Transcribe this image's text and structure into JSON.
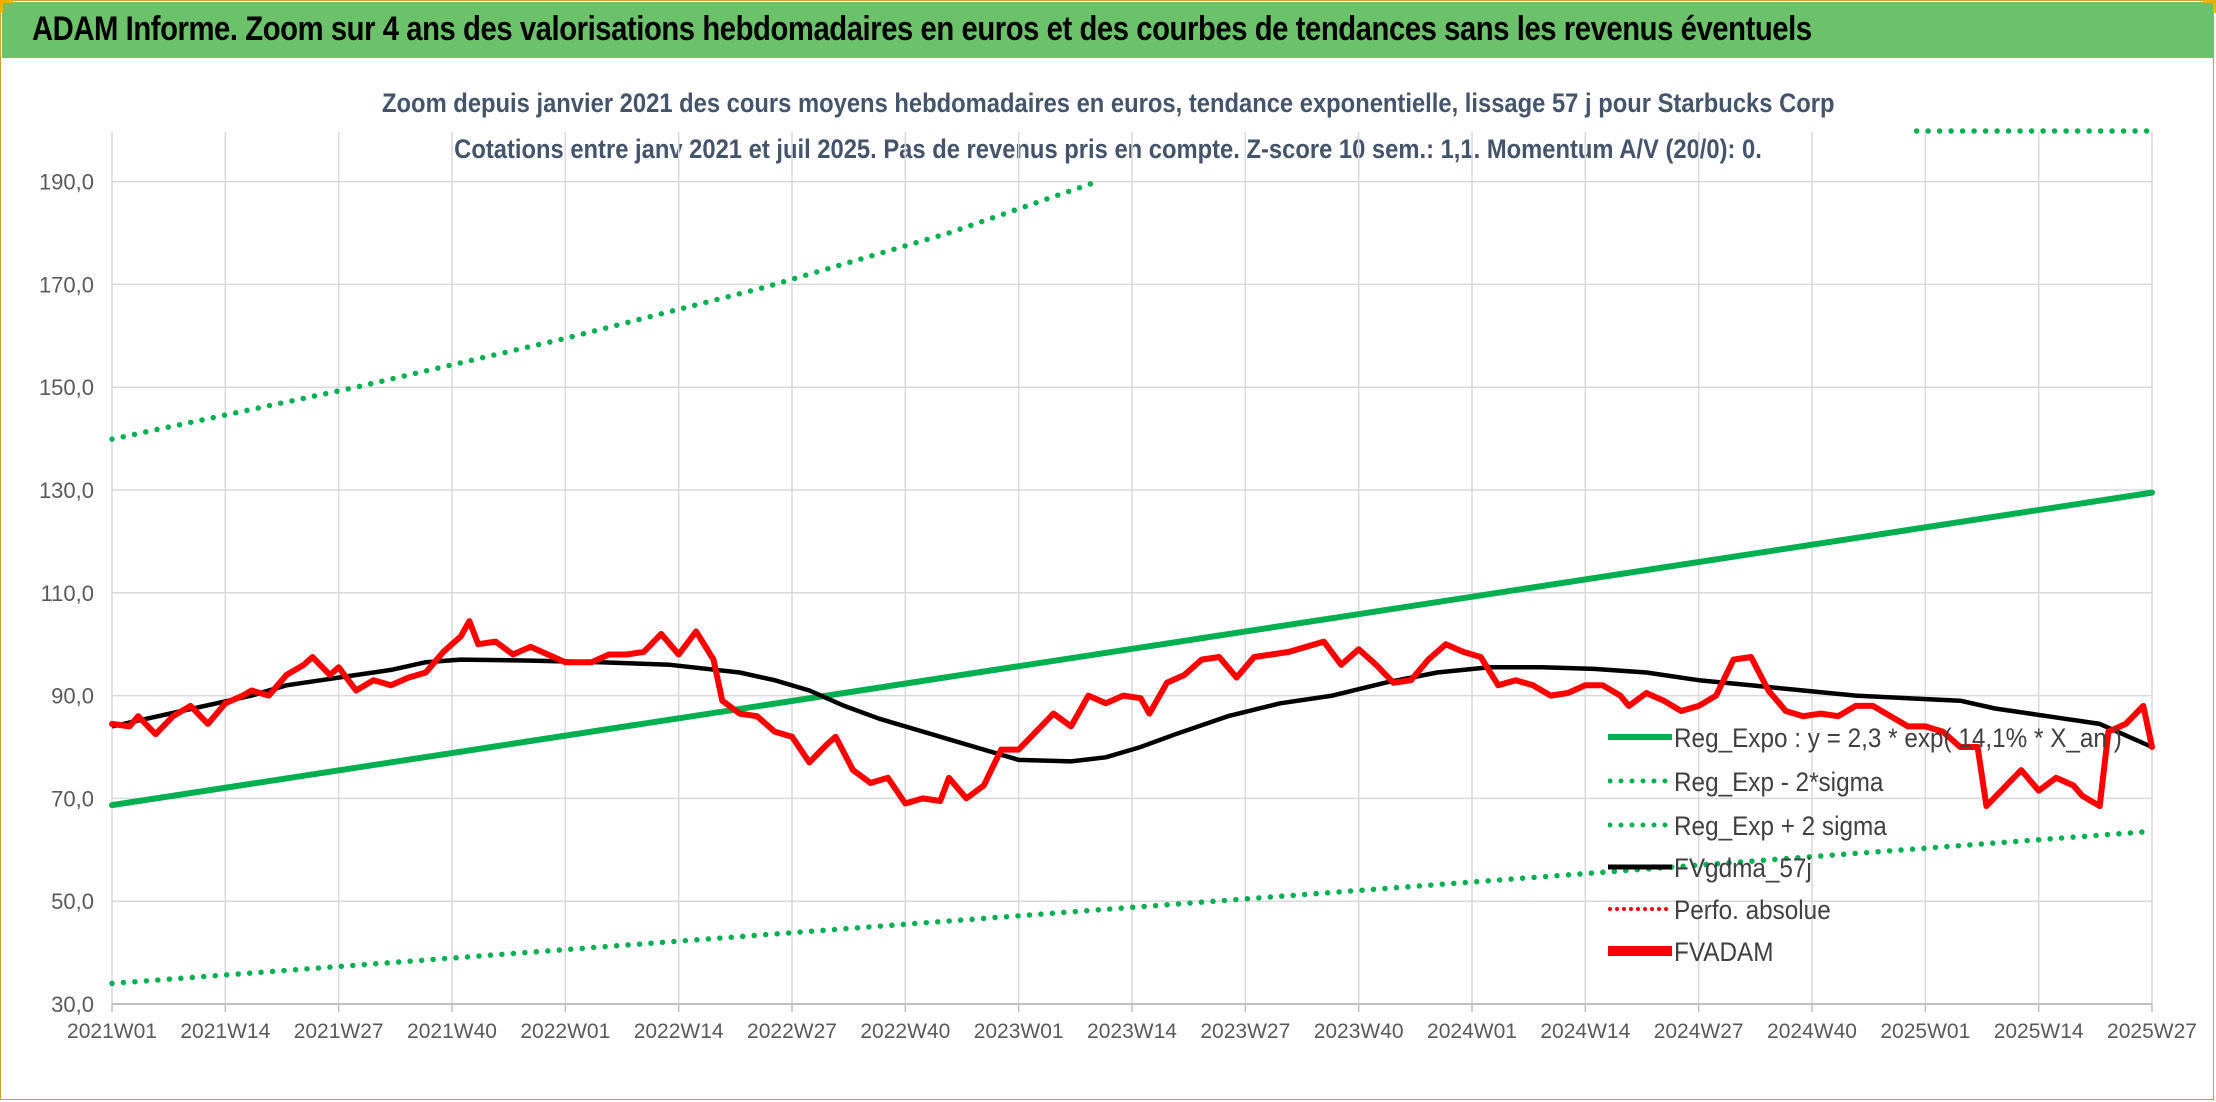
{
  "banner": {
    "title": "ADAM Informe. Zoom sur 4 ans des valorisations hebdomadaires en euros et des courbes de tendances sans les revenus éventuels"
  },
  "chart_data": {
    "type": "line",
    "title": "Zoom depuis janvier 2021 des cours moyens hebdomadaires en euros, tendance exponentielle, lissage 57 j pour Starbucks Corp",
    "subtitle": "Cotations entre janv 2021 et juil 2025. Pas de revenus pris en compte. Z-score 10 sem.: 1,1. Momentum A/V (20/0): 0.",
    "xlabel": "",
    "ylabel": "",
    "ylim": [
      30,
      200
    ],
    "yticks": [
      "30,0",
      "50,0",
      "70,0",
      "90,0",
      "110,0",
      "130,0",
      "150,0",
      "170,0",
      "190,0"
    ],
    "ytick_values": [
      30,
      50,
      70,
      90,
      110,
      130,
      150,
      170,
      190
    ],
    "xticks": [
      "2021W01",
      "2021W14",
      "2021W27",
      "2021W40",
      "2022W01",
      "2022W14",
      "2022W27",
      "2022W40",
      "2023W01",
      "2023W14",
      "2023W27",
      "2023W40",
      "2024W01",
      "2024W14",
      "2024W27",
      "2024W40",
      "2025W01",
      "2025W14",
      "2025W27"
    ],
    "x_start": "2021W01",
    "x_end": "2025W27",
    "grid": true,
    "legend_position": "bottom-right",
    "colors": {
      "trend": "#00b050",
      "smooth": "#000000",
      "price": "#ff0000",
      "grid": "#d9d9d9",
      "title": "#44546a",
      "banner": "#6cc26b"
    },
    "series": [
      {
        "name": "Reg_Expo : y = 2,3 * exp( 14,1% * X_an )",
        "style": "solid",
        "color": "#00b050",
        "points": [
          [
            0,
            68.7
          ],
          [
            234,
            129.5
          ]
        ]
      },
      {
        "name": "Reg_Exp - 2*sigma",
        "style": "dotted",
        "color": "#00b050",
        "points": [
          [
            0,
            34.0
          ],
          [
            234,
            63.6
          ]
        ]
      },
      {
        "name": "Reg_Exp + 2 sigma",
        "style": "dotted",
        "color": "#00b050",
        "points": [
          [
            0,
            139.9
          ],
          [
            28,
            150.0
          ],
          [
            52,
            159.5
          ],
          [
            75,
            169.5
          ],
          [
            96,
            180.0
          ],
          [
            113,
            190.0
          ]
        ],
        "extra_points": [
          [
            207,
            200.0
          ],
          [
            234,
            200.0
          ]
        ]
      },
      {
        "name": "FVgdma_57j",
        "style": "solid",
        "color": "#000000",
        "points": [
          [
            0,
            84.0
          ],
          [
            4,
            85.5
          ],
          [
            8,
            87.0
          ],
          [
            12,
            88.5
          ],
          [
            16,
            90.0
          ],
          [
            20,
            92.0
          ],
          [
            24,
            93.0
          ],
          [
            28,
            94.0
          ],
          [
            32,
            95.0
          ],
          [
            36,
            96.5
          ],
          [
            40,
            97.0
          ],
          [
            48,
            96.8
          ],
          [
            56,
            96.5
          ],
          [
            64,
            96.0
          ],
          [
            72,
            94.5
          ],
          [
            76,
            93.0
          ],
          [
            80,
            91.0
          ],
          [
            84,
            88.0
          ],
          [
            88,
            85.5
          ],
          [
            92,
            83.5
          ],
          [
            96,
            81.5
          ],
          [
            100,
            79.5
          ],
          [
            104,
            77.5
          ],
          [
            110,
            77.2
          ],
          [
            114,
            78.0
          ],
          [
            118,
            80.0
          ],
          [
            122,
            82.5
          ],
          [
            128,
            86.0
          ],
          [
            134,
            88.5
          ],
          [
            140,
            90.0
          ],
          [
            146,
            92.5
          ],
          [
            152,
            94.5
          ],
          [
            158,
            95.5
          ],
          [
            164,
            95.5
          ],
          [
            170,
            95.2
          ],
          [
            176,
            94.5
          ],
          [
            182,
            93.0
          ],
          [
            188,
            92.0
          ],
          [
            194,
            91.0
          ],
          [
            200,
            90.0
          ],
          [
            206,
            89.5
          ],
          [
            212,
            89.0
          ],
          [
            216,
            87.5
          ],
          [
            222,
            86.0
          ],
          [
            228,
            84.5
          ],
          [
            234,
            80.0
          ]
        ]
      },
      {
        "name": "Perfo. absolue",
        "style": "dotted",
        "color": "#ff0000",
        "points": []
      },
      {
        "name": "FVADAM",
        "style": "solid-thick",
        "color": "#ff0000",
        "points": [
          [
            0,
            84.5
          ],
          [
            2,
            84.0
          ],
          [
            3,
            86.0
          ],
          [
            5,
            82.5
          ],
          [
            7,
            86.0
          ],
          [
            9,
            88.0
          ],
          [
            11,
            84.5
          ],
          [
            13,
            88.5
          ],
          [
            15,
            90.0
          ],
          [
            16,
            91.0
          ],
          [
            18,
            90.0
          ],
          [
            20,
            94.0
          ],
          [
            22,
            96.0
          ],
          [
            23,
            97.5
          ],
          [
            25,
            94.0
          ],
          [
            26,
            95.5
          ],
          [
            28,
            91.0
          ],
          [
            30,
            93.0
          ],
          [
            32,
            92.0
          ],
          [
            34,
            93.5
          ],
          [
            36,
            94.5
          ],
          [
            38,
            98.5
          ],
          [
            40,
            101.5
          ],
          [
            41,
            104.5
          ],
          [
            42,
            100.0
          ],
          [
            44,
            100.5
          ],
          [
            46,
            98.0
          ],
          [
            48,
            99.5
          ],
          [
            50,
            98.0
          ],
          [
            52,
            96.5
          ],
          [
            55,
            96.5
          ],
          [
            57,
            98.0
          ],
          [
            59,
            98.0
          ],
          [
            61,
            98.5
          ],
          [
            63,
            102.0
          ],
          [
            65,
            98.0
          ],
          [
            67,
            102.5
          ],
          [
            69,
            97.0
          ],
          [
            70,
            89.0
          ],
          [
            72,
            86.5
          ],
          [
            74,
            86.0
          ],
          [
            76,
            83.0
          ],
          [
            78,
            82.0
          ],
          [
            80,
            77.0
          ],
          [
            82,
            80.5
          ],
          [
            83,
            82.0
          ],
          [
            85,
            75.5
          ],
          [
            87,
            73.0
          ],
          [
            89,
            74.0
          ],
          [
            91,
            69.0
          ],
          [
            93,
            70.0
          ],
          [
            95,
            69.5
          ],
          [
            96,
            74.0
          ],
          [
            98,
            70.0
          ],
          [
            100,
            72.5
          ],
          [
            102,
            79.5
          ],
          [
            104,
            79.5
          ],
          [
            106,
            83.0
          ],
          [
            108,
            86.5
          ],
          [
            110,
            84.0
          ],
          [
            112,
            90.0
          ],
          [
            114,
            88.5
          ],
          [
            116,
            90.0
          ],
          [
            118,
            89.5
          ],
          [
            119,
            86.5
          ],
          [
            121,
            92.5
          ],
          [
            123,
            94.0
          ],
          [
            125,
            97.0
          ],
          [
            127,
            97.5
          ],
          [
            129,
            93.5
          ],
          [
            131,
            97.5
          ],
          [
            133,
            98.0
          ],
          [
            135,
            98.5
          ],
          [
            137,
            99.5
          ],
          [
            139,
            100.5
          ],
          [
            141,
            96.0
          ],
          [
            143,
            99.0
          ],
          [
            145,
            96.0
          ],
          [
            147,
            92.5
          ],
          [
            149,
            93.0
          ],
          [
            151,
            97.0
          ],
          [
            153,
            100.0
          ],
          [
            155,
            98.5
          ],
          [
            157,
            97.5
          ],
          [
            159,
            92.0
          ],
          [
            161,
            93.0
          ],
          [
            163,
            92.0
          ],
          [
            165,
            90.0
          ],
          [
            167,
            90.5
          ],
          [
            169,
            92.0
          ],
          [
            171,
            92.0
          ],
          [
            173,
            90.0
          ],
          [
            174,
            88.0
          ],
          [
            176,
            90.5
          ],
          [
            178,
            89.0
          ],
          [
            180,
            87.0
          ],
          [
            182,
            88.0
          ],
          [
            184,
            90.0
          ],
          [
            186,
            97.0
          ],
          [
            188,
            97.5
          ],
          [
            190,
            91.0
          ],
          [
            192,
            87.0
          ],
          [
            194,
            86.0
          ],
          [
            196,
            86.5
          ],
          [
            198,
            86.0
          ],
          [
            200,
            88.0
          ],
          [
            202,
            88.0
          ],
          [
            204,
            86.0
          ],
          [
            206,
            84.0
          ],
          [
            208,
            84.0
          ],
          [
            210,
            83.0
          ],
          [
            212,
            80.0
          ],
          [
            214,
            80.0
          ],
          [
            215,
            68.5
          ],
          [
            217,
            72.0
          ],
          [
            219,
            75.5
          ],
          [
            221,
            71.5
          ],
          [
            223,
            74.0
          ],
          [
            225,
            72.5
          ],
          [
            226,
            70.5
          ],
          [
            228,
            68.5
          ],
          [
            229,
            83.0
          ],
          [
            231,
            84.5
          ],
          [
            233,
            88.0
          ],
          [
            234,
            80.0
          ]
        ]
      }
    ]
  },
  "legend": {
    "items": [
      "Reg_Expo : y = 2,3 * exp( 14,1% * X_an )",
      "Reg_Exp - 2*sigma",
      "Reg_Exp + 2 sigma",
      "FVgdma_57j",
      "Perfo. absolue",
      "FVADAM"
    ]
  }
}
